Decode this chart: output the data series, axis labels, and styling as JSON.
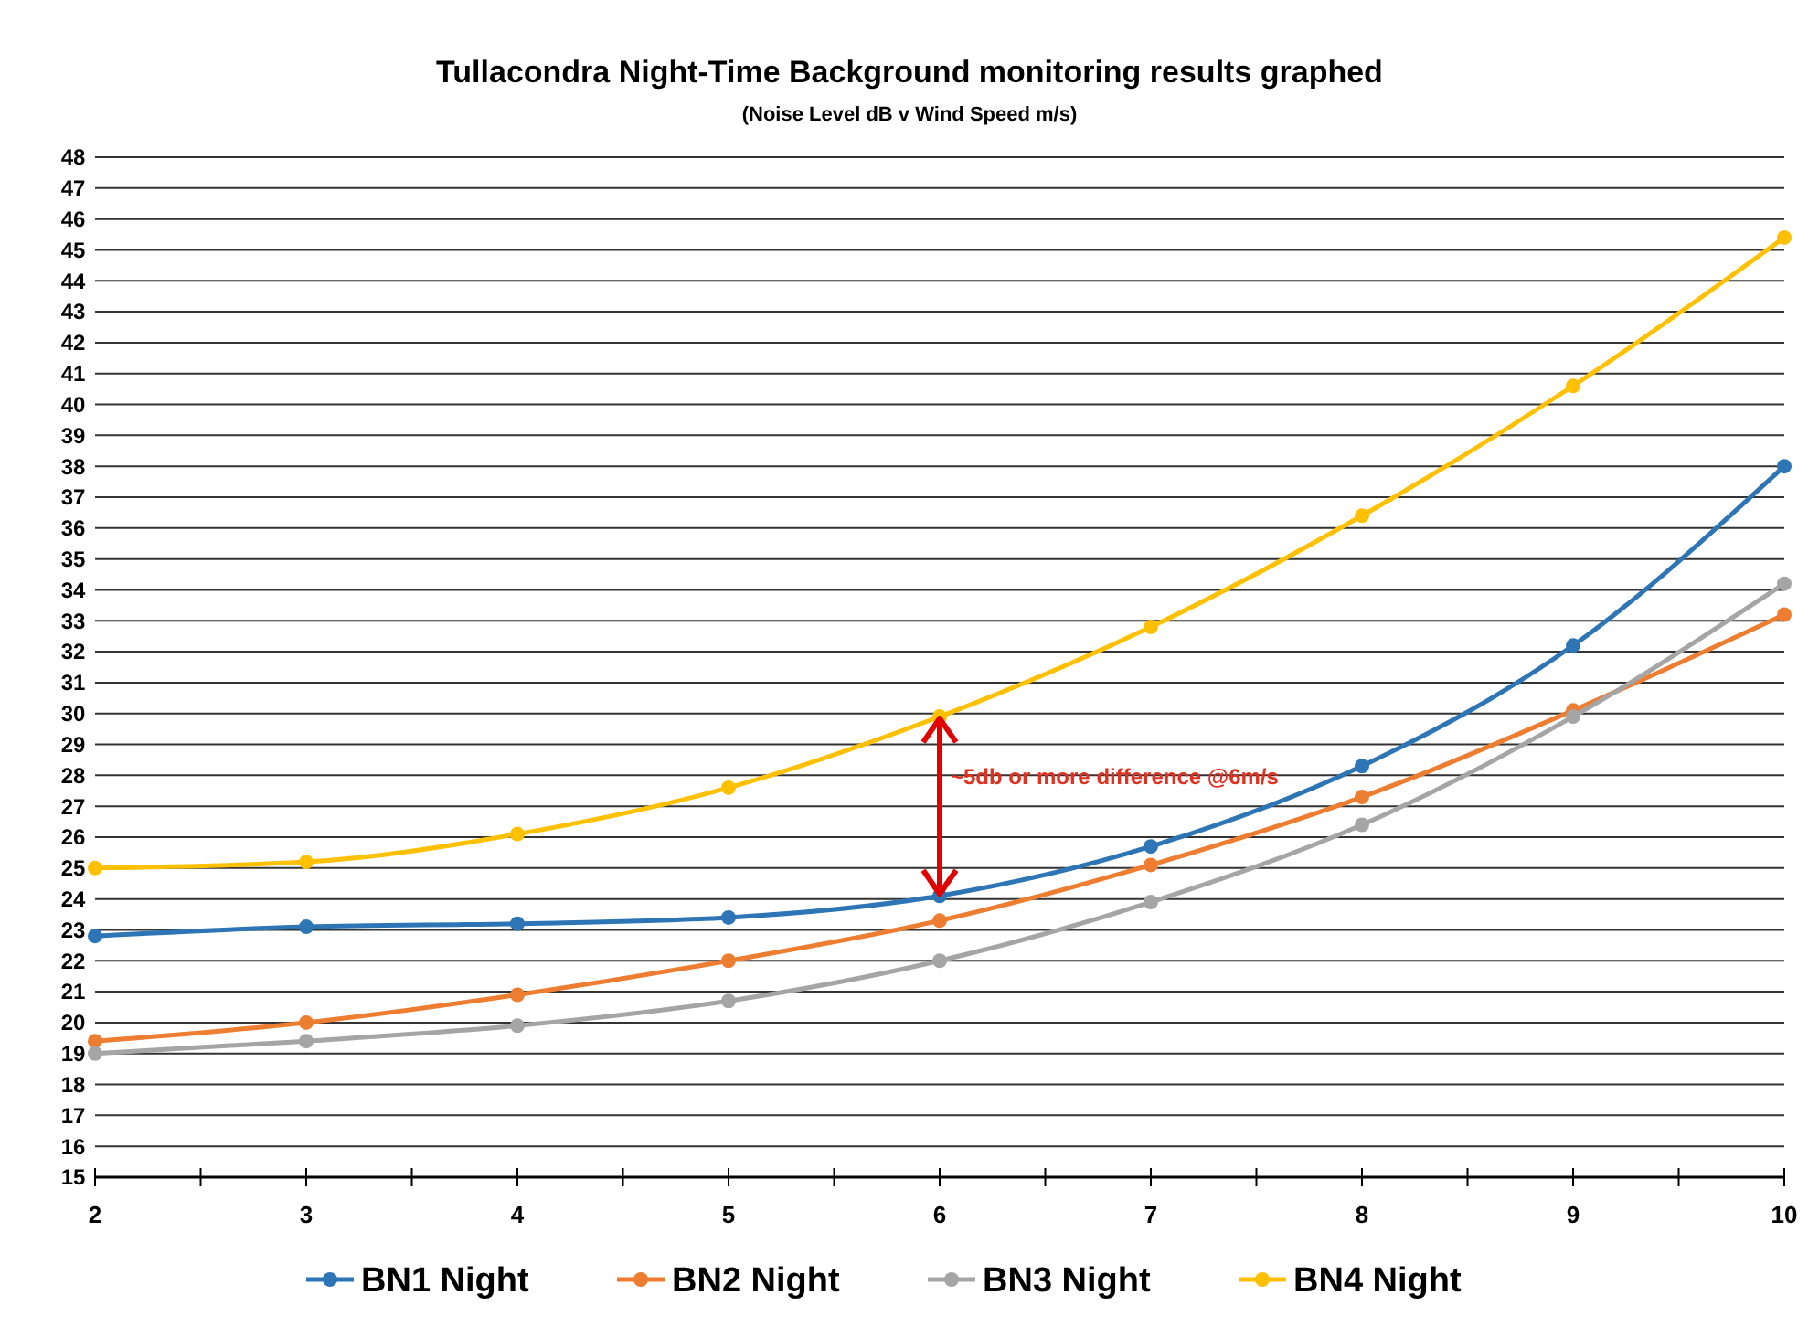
{
  "chart_data": {
    "type": "line",
    "title": "Tullacondra Night-Time Background monitoring results  graphed",
    "subtitle": "(Noise Level dB v Wind Speed m/s)",
    "x": [
      2,
      3,
      4,
      5,
      6,
      7,
      8,
      9,
      10
    ],
    "series": [
      {
        "name": "BN1 Night",
        "color": "#2e75b6",
        "values": [
          22.8,
          23.1,
          23.2,
          23.4,
          24.1,
          25.7,
          28.3,
          32.2,
          38.0
        ]
      },
      {
        "name": "BN2 Night",
        "color": "#ed7d31",
        "values": [
          19.4,
          20.0,
          20.9,
          22.0,
          23.3,
          25.1,
          27.3,
          30.1,
          33.2
        ]
      },
      {
        "name": "BN3 Night",
        "color": "#a5a5a5",
        "values": [
          19.0,
          19.4,
          19.9,
          20.7,
          22.0,
          23.9,
          26.4,
          29.9,
          34.2
        ]
      },
      {
        "name": "BN4 Night",
        "color": "#ffc000",
        "values": [
          25.0,
          25.2,
          26.1,
          27.6,
          29.9,
          32.8,
          36.4,
          40.6,
          45.4
        ]
      }
    ],
    "xlim": [
      2,
      10
    ],
    "xticks": [
      2,
      {
        "value": 2.5,
        "label": null
      },
      3,
      {
        "value": 3.5,
        "label": null
      },
      4,
      {
        "value": 4.5,
        "label": null
      },
      5,
      {
        "value": 5.5,
        "label": null
      },
      6,
      {
        "value": 6.5,
        "label": null
      },
      7,
      {
        "value": 7.5,
        "label": null
      },
      8,
      {
        "value": 8.5,
        "label": null
      },
      9,
      {
        "value": 9.5,
        "label": null
      },
      10
    ],
    "ylim": [
      15,
      48
    ],
    "yticks": [
      15,
      16,
      17,
      18,
      19,
      20,
      21,
      22,
      23,
      24,
      25,
      26,
      27,
      28,
      29,
      30,
      31,
      32,
      33,
      34,
      35,
      36,
      37,
      38,
      39,
      40,
      41,
      42,
      43,
      44,
      45,
      46,
      47,
      48
    ],
    "grid": "y",
    "legend": "bottom",
    "marker": "circle",
    "line_style": "solid",
    "annotations": [
      "~5db or more difference @6m/s"
    ]
  }
}
